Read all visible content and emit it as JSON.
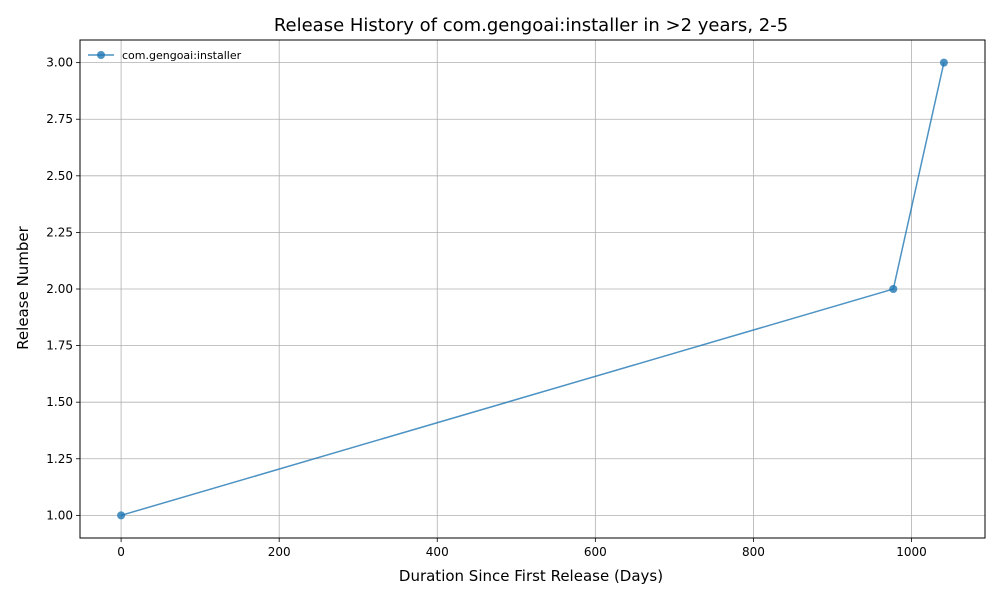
{
  "chart_data": {
    "type": "line",
    "title": "Release History of com.gengoai:installer in >2 years, 2-5",
    "xlabel": "Duration Since First Release (Days)",
    "ylabel": "Release Number",
    "xlim": [
      -52,
      1093
    ],
    "ylim": [
      0.9,
      3.1
    ],
    "x_ticks": [
      0,
      200,
      400,
      600,
      800,
      1000
    ],
    "y_ticks": [
      1.0,
      1.25,
      1.5,
      1.75,
      2.0,
      2.25,
      2.5,
      2.75,
      3.0
    ],
    "x_tick_labels": [
      "0",
      "200",
      "400",
      "600",
      "800",
      "1000"
    ],
    "y_tick_labels": [
      "1.00",
      "1.25",
      "1.50",
      "1.75",
      "2.00",
      "2.25",
      "2.50",
      "2.75",
      "3.00"
    ],
    "grid": true,
    "legend_position": "top-left",
    "series": [
      {
        "name": "com.gengoai:installer",
        "color": "#1f77b4",
        "marker": "circle",
        "x": [
          0,
          977,
          1041
        ],
        "y": [
          1,
          2,
          3
        ]
      }
    ]
  }
}
